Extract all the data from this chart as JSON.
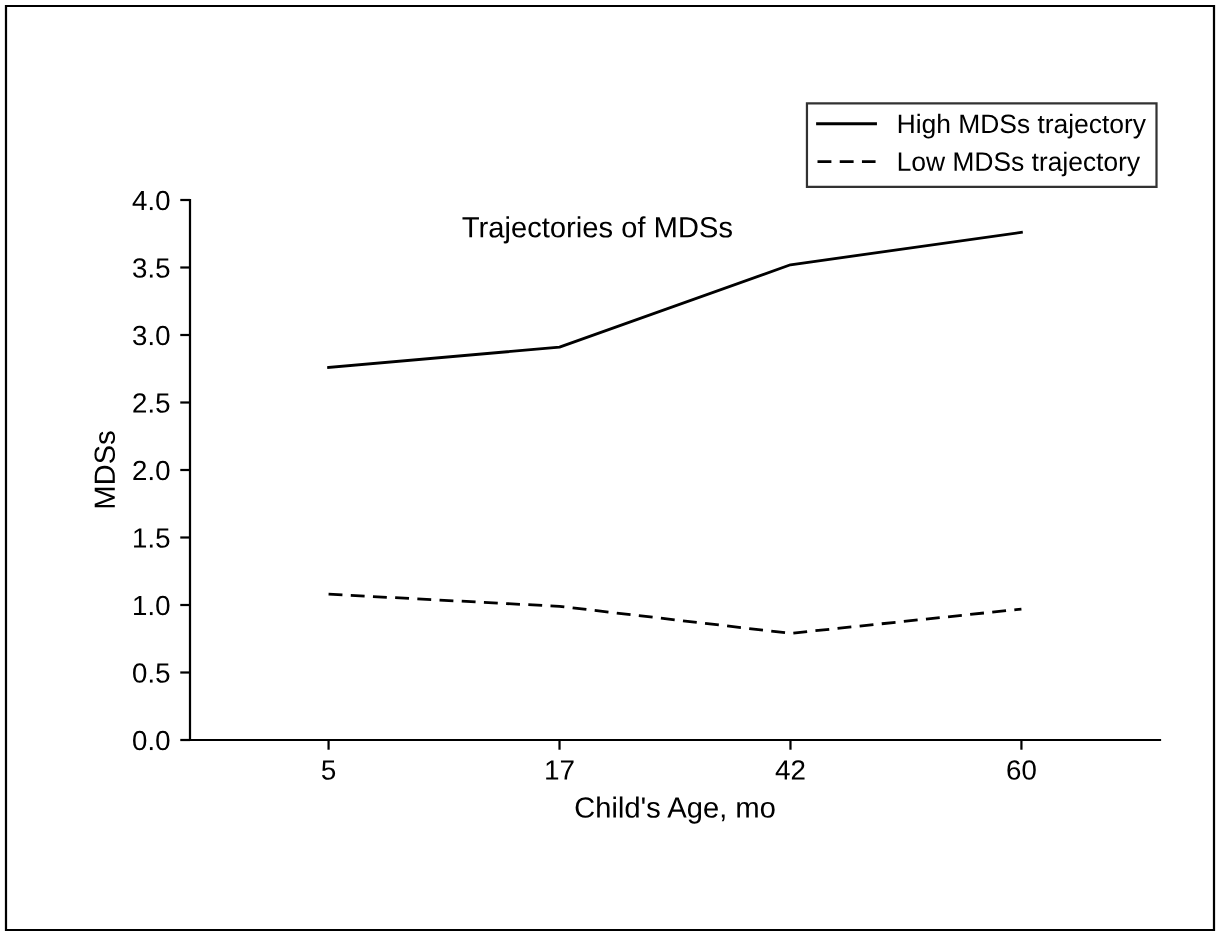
{
  "chart_data": {
    "type": "line",
    "title": "Trajectories of MDSs",
    "xlabel": "Child's Age, mo",
    "ylabel": "MDSs",
    "categories": [
      "5",
      "17",
      "42",
      "60"
    ],
    "series": [
      {
        "name": "High MDSs trajectory",
        "color": "#000000",
        "line_style": "solid",
        "values": [
          2.76,
          2.91,
          3.52,
          3.76
        ]
      },
      {
        "name": "Low MDSs trajectory",
        "color": "#000000",
        "line_style": "dashed",
        "values": [
          1.08,
          0.99,
          0.79,
          0.97
        ]
      }
    ],
    "ylim": [
      0,
      4.0
    ],
    "yticks": [
      {
        "value": 0,
        "label": "0.0"
      },
      {
        "value": 0.5,
        "label": "0.5"
      },
      {
        "value": 1.0,
        "label": "1.0"
      },
      {
        "value": 1.5,
        "label": "1.5"
      },
      {
        "value": 2.0,
        "label": "2.0"
      },
      {
        "value": 2.5,
        "label": "2.5"
      },
      {
        "value": 3.0,
        "label": "3.0"
      },
      {
        "value": 3.5,
        "label": "3.5"
      },
      {
        "value": 4.0,
        "label": "4.0"
      }
    ],
    "grid": false,
    "legend": "top right",
    "marker": "none"
  }
}
